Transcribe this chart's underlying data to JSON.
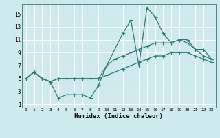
{
  "xlabel": "Humidex (Indice chaleur)",
  "bg_color": "#ceeaec",
  "grid_color": "#ffffff",
  "line_color": "#2e7d72",
  "xlim": [
    -0.5,
    23.5
  ],
  "ylim": [
    0.5,
    16.5
  ],
  "xticks": [
    0,
    1,
    2,
    3,
    4,
    5,
    6,
    7,
    8,
    9,
    10,
    11,
    12,
    13,
    14,
    15,
    16,
    17,
    18,
    19,
    20,
    21,
    22,
    23
  ],
  "yticks": [
    1,
    3,
    5,
    7,
    9,
    11,
    13,
    15
  ],
  "line1_x": [
    0,
    1,
    2,
    3,
    4,
    5,
    6,
    7,
    8,
    9,
    10,
    11,
    12,
    13,
    14,
    15,
    16,
    17,
    18,
    19,
    20,
    21,
    22,
    23
  ],
  "line1_y": [
    5,
    6,
    5,
    4.5,
    2,
    2.5,
    2.5,
    2.5,
    2,
    4,
    7,
    9.5,
    12,
    14,
    7,
    16,
    14.5,
    12,
    10.5,
    11,
    10.5,
    9.5,
    8.5,
    8
  ],
  "line2_x": [
    0,
    1,
    2,
    3,
    4,
    5,
    6,
    7,
    8,
    9,
    10,
    11,
    12,
    13,
    14,
    15,
    16,
    17,
    18,
    19,
    20,
    21,
    22,
    23
  ],
  "line2_y": [
    5,
    6,
    5,
    4.5,
    5,
    5,
    5,
    5,
    5,
    5,
    7,
    8,
    8.5,
    9,
    9.5,
    10,
    10.5,
    10.5,
    10.5,
    11,
    11,
    9.5,
    9.5,
    8
  ],
  "line3_x": [
    0,
    1,
    2,
    3,
    4,
    5,
    6,
    7,
    8,
    9,
    10,
    11,
    12,
    13,
    14,
    15,
    16,
    17,
    18,
    19,
    20,
    21,
    22,
    23
  ],
  "line3_y": [
    5,
    6,
    5,
    4.5,
    5,
    5,
    5,
    5,
    5,
    5,
    5.5,
    6,
    6.5,
    7,
    7.5,
    8,
    8.5,
    8.5,
    9,
    9,
    9,
    8.5,
    8,
    7.5
  ]
}
